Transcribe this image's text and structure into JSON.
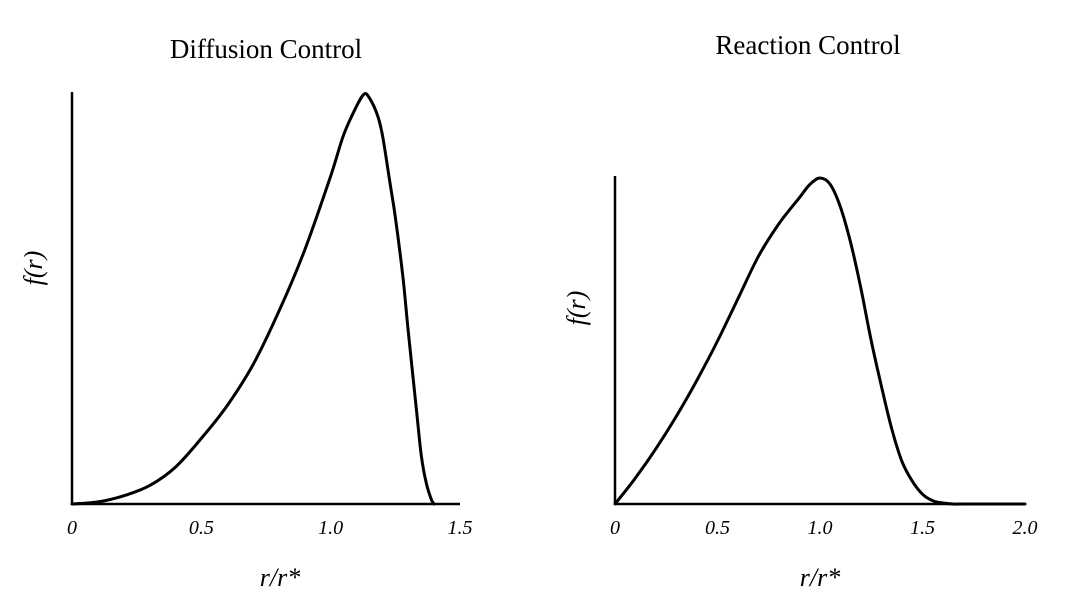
{
  "chart_data": [
    {
      "type": "line",
      "title": "Diffusion Control",
      "xlabel": "r/r*",
      "ylabel": "f(r)",
      "xlim": [
        0,
        1.5
      ],
      "xticks": [
        0,
        0.5,
        1.0,
        1.5
      ],
      "xtick_labels": [
        "0",
        "0.5",
        "1.0",
        "1.5"
      ],
      "ylim": [
        0,
        1
      ],
      "yticks_shown": false,
      "grid": false,
      "series": [
        {
          "x": [
            0,
            0.1,
            0.2,
            0.3,
            0.4,
            0.5,
            0.6,
            0.7,
            0.8,
            0.9,
            1.0,
            1.05,
            1.1,
            1.13,
            1.15,
            1.18,
            1.2,
            1.23,
            1.25,
            1.28,
            1.3,
            1.33,
            1.35,
            1.37,
            1.39,
            1.4
          ],
          "y": [
            0,
            0.005,
            0.02,
            0.045,
            0.09,
            0.16,
            0.24,
            0.34,
            0.47,
            0.62,
            0.8,
            0.9,
            0.97,
            1.0,
            0.99,
            0.95,
            0.9,
            0.78,
            0.7,
            0.55,
            0.42,
            0.24,
            0.12,
            0.05,
            0.01,
            0
          ]
        }
      ]
    },
    {
      "type": "line",
      "title": "Reaction Control",
      "xlabel": "r/r*",
      "ylabel": "f(r)",
      "xlim": [
        0,
        2.0
      ],
      "xticks": [
        0,
        0.5,
        1.0,
        1.5,
        2.0
      ],
      "xtick_labels": [
        "0",
        "0.5",
        "1.0",
        "1.5",
        "2.0"
      ],
      "ylim": [
        0,
        1
      ],
      "yticks_shown": false,
      "grid": false,
      "series": [
        {
          "x": [
            0,
            0.1,
            0.2,
            0.3,
            0.4,
            0.5,
            0.6,
            0.7,
            0.8,
            0.9,
            0.95,
            1.0,
            1.05,
            1.1,
            1.15,
            1.2,
            1.25,
            1.3,
            1.35,
            1.4,
            1.45,
            1.5,
            1.55,
            1.6,
            1.65,
            1.7,
            2.0
          ],
          "y": [
            0,
            0.08,
            0.17,
            0.27,
            0.38,
            0.5,
            0.63,
            0.76,
            0.86,
            0.94,
            0.98,
            1.0,
            0.98,
            0.91,
            0.8,
            0.66,
            0.5,
            0.36,
            0.23,
            0.13,
            0.07,
            0.03,
            0.01,
            0.003,
            0,
            0,
            0
          ]
        }
      ]
    }
  ]
}
